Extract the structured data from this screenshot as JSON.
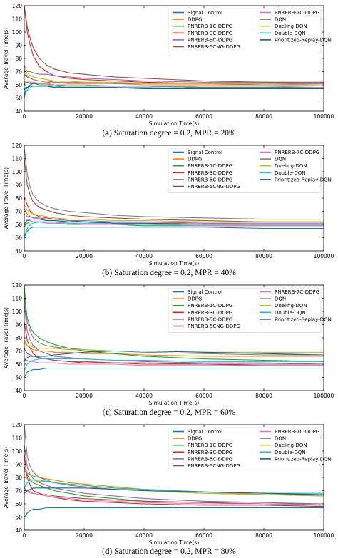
{
  "legend_colors": [
    "#1f77b4",
    "#ff7f0e",
    "#2ca02c",
    "#d62728",
    "#9467bd",
    "#8c564b",
    "#e377c2",
    "#7f7f7f",
    "#bcbd22",
    "#17becf",
    "#1a5f8c"
  ],
  "chart_data": [
    {
      "type": "line",
      "caption_letter": "a",
      "caption_text": "Saturation degree = 0.2, MPR = 20%",
      "xlabel": "Simulation Time(s)",
      "ylabel": "Average Travel Time(s)",
      "xlim": [
        0,
        100000
      ],
      "ylim": [
        40,
        120
      ],
      "xticks": [
        0,
        20000,
        40000,
        60000,
        80000,
        100000
      ],
      "yticks": [
        40,
        50,
        60,
        70,
        80,
        90,
        100,
        110,
        120
      ],
      "grid": false,
      "legend_position": "top-right",
      "x": [
        0,
        500,
        1000,
        2000,
        3000,
        5000,
        7500,
        10000,
        15000,
        20000,
        30000,
        40000,
        60000,
        80000,
        100000
      ],
      "series": [
        {
          "name": "Signal Control",
          "values": [
            52,
            56,
            58,
            60,
            61,
            61,
            61,
            60,
            60,
            60,
            59,
            59,
            58,
            58,
            58
          ]
        },
        {
          "name": "DDPG",
          "values": [
            70,
            68,
            67,
            65,
            64,
            63,
            62,
            62,
            61,
            61,
            61,
            60,
            60,
            60,
            60
          ]
        },
        {
          "name": "PNRERB-1C-DDPG",
          "values": [
            60,
            62,
            62,
            61,
            61,
            60,
            60,
            60,
            59,
            59,
            59,
            59,
            58,
            58,
            58
          ]
        },
        {
          "name": "PNRERB-3C-DDPG",
          "values": [
            120,
            110,
            100,
            90,
            82,
            74,
            70,
            67,
            65,
            64,
            63,
            62,
            61,
            61,
            61
          ]
        },
        {
          "name": "PNRERB-5C-DDPG",
          "values": [
            75,
            72,
            70,
            70,
            69,
            68,
            68,
            67,
            66,
            65,
            64,
            63,
            62,
            62,
            61
          ]
        },
        {
          "name": "PNRERB-5CNG-DDPG",
          "values": [
            120,
            112,
            104,
            95,
            88,
            80,
            75,
            72,
            69,
            68,
            66,
            65,
            63,
            62,
            62
          ]
        },
        {
          "name": "PNRERB-7C-DDPG",
          "values": [
            62,
            63,
            63,
            62,
            62,
            61,
            61,
            60,
            60,
            60,
            59,
            59,
            59,
            59,
            58
          ]
        },
        {
          "name": "DQN",
          "values": [
            68,
            67,
            66,
            65,
            64,
            63,
            63,
            62,
            62,
            62,
            61,
            61,
            61,
            60,
            60
          ]
        },
        {
          "name": "Dueling-DQN",
          "values": [
            72,
            70,
            69,
            67,
            66,
            65,
            64,
            63,
            63,
            62,
            62,
            61,
            61,
            61,
            60
          ]
        },
        {
          "name": "Double-DQN",
          "values": [
            50,
            54,
            56,
            58,
            59,
            59,
            59,
            59,
            58,
            58,
            58,
            58,
            57,
            57,
            57
          ]
        },
        {
          "name": "Prioritized-Replay-DQN",
          "values": [
            56,
            58,
            58,
            59,
            59,
            59,
            59,
            58,
            58,
            58,
            58,
            57,
            57,
            57,
            57
          ]
        }
      ]
    },
    {
      "type": "line",
      "caption_letter": "b",
      "caption_text": "Saturation degree = 0.2, MPR = 40%",
      "xlabel": "Simulation Time(s)",
      "ylabel": "Average Travel Time(s)",
      "xlim": [
        0,
        100000
      ],
      "ylim": [
        40,
        120
      ],
      "xticks": [
        0,
        20000,
        40000,
        60000,
        80000,
        100000
      ],
      "yticks": [
        40,
        50,
        60,
        70,
        80,
        90,
        100,
        110,
        120
      ],
      "grid": false,
      "legend_position": "top-right",
      "x": [
        0,
        500,
        1000,
        2000,
        3000,
        5000,
        7500,
        10000,
        15000,
        20000,
        30000,
        40000,
        60000,
        80000,
        100000
      ],
      "series": [
        {
          "name": "Signal Control",
          "values": [
            50,
            53,
            55,
            57,
            58,
            58,
            58,
            58,
            58,
            58,
            58,
            58,
            58,
            57,
            57
          ]
        },
        {
          "name": "DDPG",
          "values": [
            72,
            70,
            68,
            66,
            65,
            64,
            63,
            63,
            62,
            62,
            61,
            61,
            61,
            60,
            60
          ]
        },
        {
          "name": "PNRERB-1C-DDPG",
          "values": [
            58,
            60,
            61,
            62,
            62,
            62,
            61,
            61,
            60,
            60,
            60,
            59,
            59,
            59,
            59
          ]
        },
        {
          "name": "PNRERB-3C-DDPG",
          "values": [
            80,
            78,
            75,
            70,
            68,
            66,
            65,
            64,
            63,
            62,
            61,
            61,
            60,
            60,
            60
          ]
        },
        {
          "name": "PNRERB-5C-DDPG",
          "values": [
            68,
            67,
            66,
            66,
            65,
            65,
            64,
            64,
            63,
            63,
            62,
            62,
            61,
            61,
            61
          ]
        },
        {
          "name": "PNRERB-5CNG-DDPG",
          "values": [
            110,
            100,
            90,
            82,
            77,
            73,
            71,
            69,
            67,
            66,
            65,
            64,
            63,
            62,
            62
          ]
        },
        {
          "name": "PNRERB-7C-DDPG",
          "values": [
            64,
            64,
            63,
            63,
            62,
            62,
            61,
            61,
            61,
            60,
            60,
            60,
            59,
            59,
            59
          ]
        },
        {
          "name": "DQN",
          "values": [
            118,
            108,
            98,
            88,
            82,
            77,
            74,
            72,
            70,
            69,
            67,
            66,
            65,
            64,
            64
          ]
        },
        {
          "name": "Dueling-DQN",
          "values": [
            75,
            73,
            71,
            69,
            68,
            67,
            66,
            65,
            64,
            64,
            63,
            63,
            62,
            62,
            62
          ]
        },
        {
          "name": "Double-DQN",
          "values": [
            50,
            54,
            57,
            60,
            61,
            62,
            62,
            62,
            61,
            61,
            61,
            60,
            60,
            60,
            60
          ]
        },
        {
          "name": "Prioritized-Replay-DQN",
          "values": [
            60,
            62,
            63,
            64,
            64,
            64,
            63,
            63,
            62,
            62,
            61,
            61,
            60,
            60,
            60
          ]
        }
      ]
    },
    {
      "type": "line",
      "caption_letter": "c",
      "caption_text": "Saturation degree = 0.2, MPR = 60%",
      "xlabel": "Simulation Time(s)",
      "ylabel": "Average Travel Time(s)",
      "xlim": [
        0,
        100000
      ],
      "ylim": [
        40,
        120
      ],
      "xticks": [
        0,
        20000,
        40000,
        60000,
        80000,
        100000
      ],
      "yticks": [
        40,
        50,
        60,
        70,
        80,
        90,
        100,
        110,
        120
      ],
      "grid": false,
      "legend_position": "top-right",
      "x": [
        0,
        500,
        1000,
        2000,
        3000,
        5000,
        7500,
        10000,
        15000,
        20000,
        30000,
        40000,
        60000,
        80000,
        100000
      ],
      "series": [
        {
          "name": "Signal Control",
          "values": [
            50,
            52,
            54,
            55,
            56,
            56,
            57,
            57,
            57,
            57,
            57,
            57,
            57,
            57,
            57
          ]
        },
        {
          "name": "DDPG",
          "values": [
            78,
            76,
            74,
            72,
            71,
            70,
            70,
            69,
            69,
            68,
            68,
            67,
            66,
            66,
            66
          ]
        },
        {
          "name": "PNRERB-1C-DDPG",
          "values": [
            120,
            105,
            95,
            88,
            84,
            80,
            77,
            75,
            72,
            70,
            68,
            66,
            64,
            63,
            62
          ]
        },
        {
          "name": "PNRERB-3C-DDPG",
          "values": [
            92,
            85,
            78,
            72,
            68,
            65,
            64,
            63,
            62,
            61,
            61,
            60,
            60,
            59,
            59
          ]
        },
        {
          "name": "PNRERB-5C-DDPG",
          "values": [
            105,
            95,
            85,
            78,
            74,
            70,
            68,
            66,
            65,
            64,
            63,
            62,
            61,
            61,
            60
          ]
        },
        {
          "name": "PNRERB-5CNG-DDPG",
          "values": [
            72,
            70,
            68,
            67,
            66,
            65,
            64,
            63,
            62,
            62,
            61,
            61,
            60,
            60,
            60
          ]
        },
        {
          "name": "PNRERB-7C-DDPG",
          "values": [
            64,
            63,
            63,
            62,
            62,
            61,
            61,
            61,
            60,
            60,
            60,
            59,
            59,
            59,
            59
          ]
        },
        {
          "name": "DQN",
          "values": [
            112,
            100,
            92,
            85,
            80,
            76,
            74,
            73,
            72,
            71,
            70,
            69,
            68,
            67,
            67
          ]
        },
        {
          "name": "Dueling-DQN",
          "values": [
            76,
            75,
            74,
            73,
            73,
            72,
            72,
            72,
            71,
            71,
            70,
            70,
            69,
            69,
            69
          ]
        },
        {
          "name": "Double-DQN",
          "values": [
            55,
            58,
            60,
            62,
            63,
            64,
            64,
            64,
            64,
            64,
            63,
            63,
            62,
            62,
            62
          ]
        },
        {
          "name": "Prioritized-Replay-DQN",
          "values": [
            62,
            64,
            65,
            66,
            66,
            66,
            66,
            67,
            68,
            69,
            70,
            70,
            69,
            68,
            67
          ]
        }
      ]
    },
    {
      "type": "line",
      "caption_letter": "d",
      "caption_text": "Saturation degree = 0.2, MPR = 80%",
      "xlabel": "Simulation Time(s)",
      "ylabel": "Average Travel Time(s)",
      "xlim": [
        0,
        100000
      ],
      "ylim": [
        40,
        120
      ],
      "xticks": [
        0,
        20000,
        40000,
        60000,
        80000,
        100000
      ],
      "yticks": [
        40,
        50,
        60,
        70,
        80,
        90,
        100,
        110,
        120
      ],
      "grid": false,
      "legend_position": "top-right",
      "x": [
        0,
        500,
        1000,
        2000,
        3000,
        5000,
        7500,
        10000,
        15000,
        20000,
        30000,
        40000,
        60000,
        80000,
        100000
      ],
      "series": [
        {
          "name": "Signal Control",
          "values": [
            50,
            51,
            53,
            55,
            56,
            56,
            57,
            57,
            57,
            57,
            57,
            57,
            57,
            57,
            57
          ]
        },
        {
          "name": "DDPG",
          "values": [
            85,
            84,
            83,
            82,
            81,
            80,
            79,
            78,
            76,
            75,
            73,
            71,
            69,
            67,
            66
          ]
        },
        {
          "name": "PNRERB-1C-DDPG",
          "values": [
            88,
            85,
            82,
            78,
            76,
            74,
            72,
            70,
            68,
            66,
            64,
            62,
            61,
            60,
            60
          ]
        },
        {
          "name": "PNRERB-3C-DDPG",
          "values": [
            98,
            88,
            80,
            74,
            70,
            68,
            66,
            65,
            63,
            62,
            61,
            60,
            59,
            59,
            58
          ]
        },
        {
          "name": "PNRERB-5C-DDPG",
          "values": [
            105,
            96,
            88,
            82,
            79,
            76,
            74,
            72,
            70,
            68,
            66,
            64,
            62,
            61,
            60
          ]
        },
        {
          "name": "PNRERB-5CNG-DDPG",
          "values": [
            72,
            71,
            70,
            69,
            68,
            67,
            67,
            66,
            65,
            64,
            63,
            62,
            61,
            60,
            59
          ]
        },
        {
          "name": "PNRERB-7C-DDPG",
          "values": [
            70,
            70,
            69,
            68,
            68,
            67,
            66,
            65,
            64,
            63,
            62,
            61,
            60,
            60,
            59
          ]
        },
        {
          "name": "DQN",
          "values": [
            120,
            108,
            96,
            88,
            84,
            80,
            78,
            76,
            74,
            73,
            71,
            70,
            68,
            67,
            67
          ]
        },
        {
          "name": "Dueling-DQN",
          "values": [
            80,
            80,
            79,
            78,
            78,
            77,
            77,
            76,
            75,
            74,
            72,
            70,
            68,
            67,
            66
          ]
        },
        {
          "name": "Double-DQN",
          "values": [
            72,
            74,
            76,
            78,
            78,
            78,
            77,
            76,
            75,
            74,
            72,
            71,
            69,
            68,
            68
          ]
        },
        {
          "name": "Prioritized-Replay-DQN",
          "values": [
            68,
            69,
            70,
            71,
            72,
            72,
            72,
            72,
            72,
            72,
            71,
            70,
            69,
            68,
            67
          ]
        }
      ]
    }
  ]
}
